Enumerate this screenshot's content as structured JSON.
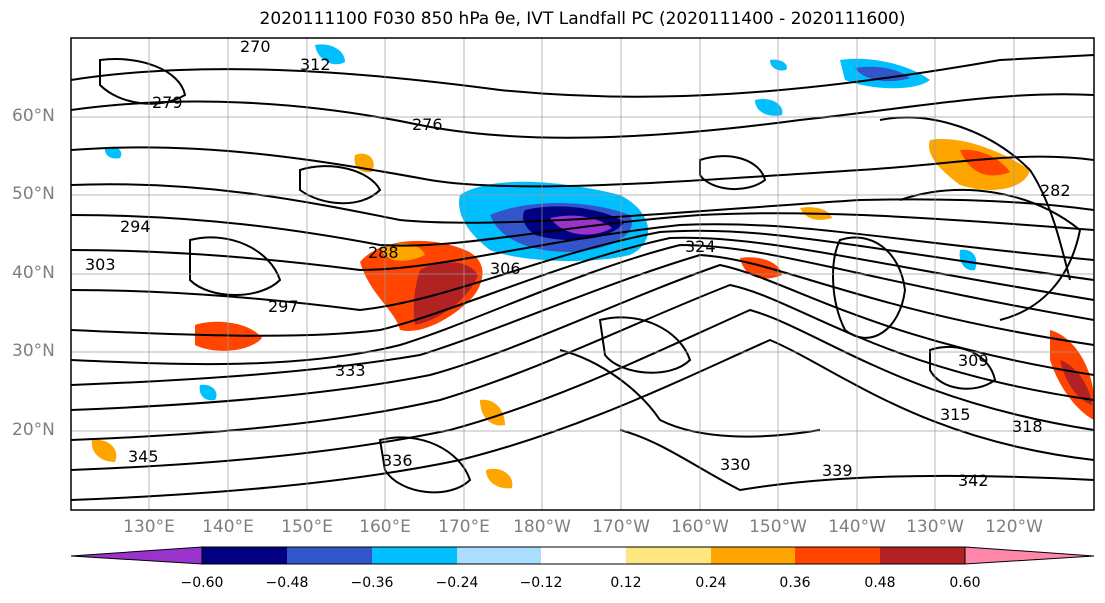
{
  "title": "2020111100 F030 850 hPa θe, IVT Landfall PC (2020111400 - 2020111600)",
  "map": {
    "lat_labels": [
      "60°N",
      "50°N",
      "40°N",
      "30°N",
      "20°N"
    ],
    "lon_labels": [
      "130°E",
      "140°E",
      "150°E",
      "160°E",
      "170°E",
      "180°W",
      "170°W",
      "160°W",
      "150°W",
      "140°W",
      "130°W",
      "120°W"
    ],
    "contour_labels": [
      "270",
      "279",
      "276",
      "282",
      "288",
      "294",
      "297",
      "303",
      "306",
      "309",
      "312",
      "315",
      "318",
      "324",
      "330",
      "333",
      "336",
      "339",
      "342",
      "345"
    ]
  },
  "colorbar": {
    "ticks": [
      "−0.60",
      "−0.48",
      "−0.36",
      "−0.24",
      "−0.12",
      "0.12",
      "0.24",
      "0.36",
      "0.48",
      "0.60"
    ],
    "colors": [
      "#9933cc",
      "#000080",
      "#3355cc",
      "#00bfff",
      "#aadeff",
      "#ffffff",
      "#ffe680",
      "#ffa500",
      "#ff4500",
      "#b22222",
      "#ff88aa"
    ]
  }
}
